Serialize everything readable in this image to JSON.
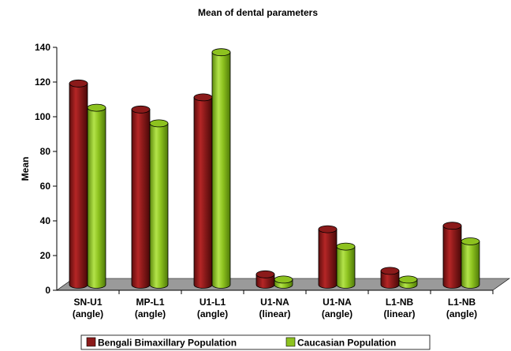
{
  "chart_data": {
    "type": "bar",
    "title": "Mean of dental parameters",
    "ylabel": "Mean",
    "xlabel": "",
    "ylim": [
      0,
      140
    ],
    "yticks": [
      0,
      20,
      40,
      60,
      80,
      100,
      120,
      140
    ],
    "categories": [
      [
        "SN-U1",
        "(angle)"
      ],
      [
        "MP-L1",
        "(angle)"
      ],
      [
        "U1-L1",
        "(angle)"
      ],
      [
        "U1-NA",
        "(linear)"
      ],
      [
        "U1-NA",
        "(angle)"
      ],
      [
        "L1-NB",
        "(linear)"
      ],
      [
        "L1-NB",
        "(angle)"
      ]
    ],
    "series": [
      {
        "name": "Bengali Bimaxillary Population",
        "color": "#8B1A1A",
        "values": [
          116,
          101,
          108,
          6,
          32,
          8,
          34
        ]
      },
      {
        "name": "Caucasian Population",
        "color": "#8DC21F",
        "values": [
          102,
          93,
          134,
          3,
          22,
          3,
          25
        ]
      }
    ],
    "grid": false,
    "legend_position": "bottom",
    "style": "3d-cylinder"
  }
}
